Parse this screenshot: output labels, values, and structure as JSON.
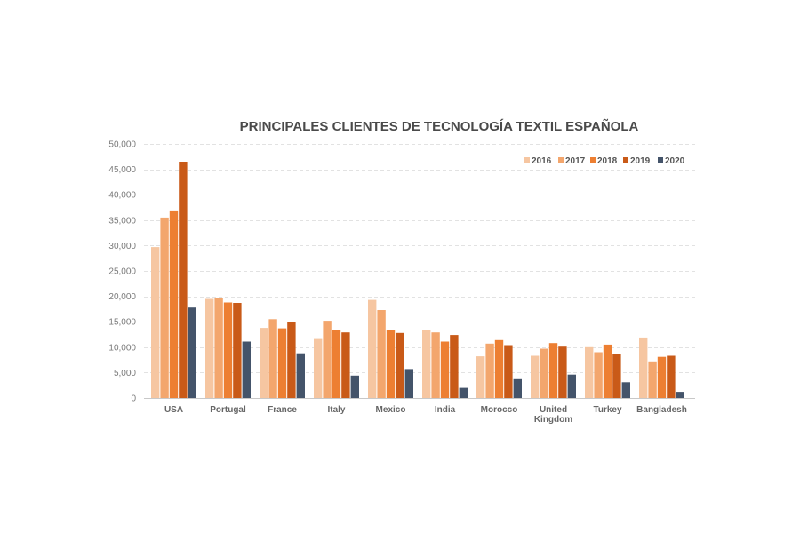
{
  "chart_data": {
    "type": "bar",
    "title": "PRINCIPALES CLIENTES DE TECNOLOGÍA TEXTIL ESPAÑOLA",
    "xlabel": "",
    "ylabel": "",
    "ylim": [
      0,
      50000
    ],
    "yticks": [
      0,
      5000,
      10000,
      15000,
      20000,
      25000,
      30000,
      35000,
      40000,
      45000,
      50000
    ],
    "ytick_labels": [
      "0",
      "5,000",
      "10,000",
      "15,000",
      "20,000",
      "25,000",
      "30,000",
      "35,000",
      "40,000",
      "45,000",
      "50,000"
    ],
    "grid": true,
    "legend_position": "top-right",
    "categories": [
      "USA",
      "Portugal",
      "France",
      "Italy",
      "Mexico",
      "India",
      "Morocco",
      "United Kingdom",
      "Turkey",
      "Bangladesh"
    ],
    "category_lines": [
      [
        "USA"
      ],
      [
        "Portugal"
      ],
      [
        "France"
      ],
      [
        "Italy"
      ],
      [
        "Mexico"
      ],
      [
        "India"
      ],
      [
        "Morocco"
      ],
      [
        "United",
        "Kingdom"
      ],
      [
        "Turkey"
      ],
      [
        "Bangladesh"
      ]
    ],
    "series": [
      {
        "name": "2016",
        "color": "#f6c6a1",
        "values": [
          29700,
          19500,
          13800,
          11600,
          19300,
          13400,
          8200,
          8300,
          10000,
          11900
        ]
      },
      {
        "name": "2017",
        "color": "#f3a66d",
        "values": [
          35500,
          19600,
          15500,
          15200,
          17300,
          12900,
          10700,
          9700,
          9000,
          7200
        ]
      },
      {
        "name": "2018",
        "color": "#ed7f32",
        "values": [
          36900,
          18800,
          13700,
          13400,
          13400,
          11100,
          11400,
          10800,
          10500,
          8100
        ]
      },
      {
        "name": "2019",
        "color": "#c95a18",
        "values": [
          46500,
          18700,
          15000,
          12900,
          12800,
          12400,
          10400,
          10100,
          8600,
          8300
        ]
      },
      {
        "name": "2020",
        "color": "#44546a",
        "values": [
          17800,
          11100,
          8800,
          4400,
          5700,
          2000,
          3700,
          4600,
          3100,
          1200
        ]
      }
    ]
  }
}
